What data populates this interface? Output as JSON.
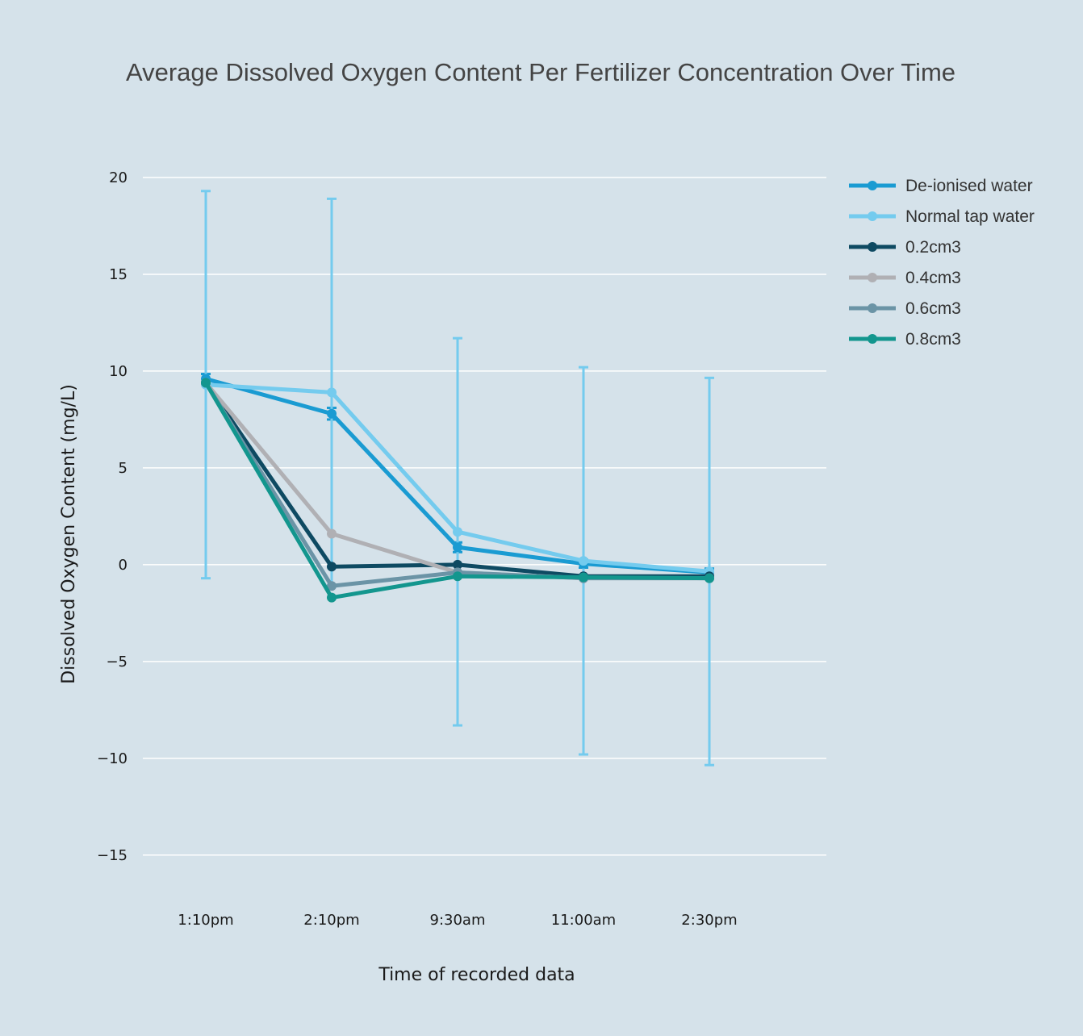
{
  "chart_data": {
    "type": "line",
    "title": "Average Dissolved Oxygen Content Per Fertilizer Concentration Over Time",
    "xlabel": "Time of recorded data",
    "ylabel": "Dissolved Oxygen Content (mg/L)",
    "categories": [
      "1:10pm",
      "2:10pm",
      "9:30am",
      "11:00am",
      "2:30pm"
    ],
    "ylim": [
      -16.8,
      22.5
    ],
    "yticks": [
      20,
      15,
      10,
      5,
      0,
      -5,
      -10,
      -15
    ],
    "ytick_labels": [
      "20",
      "15",
      "10",
      "5",
      "0",
      "−5",
      "−10",
      "−15"
    ],
    "grid": true,
    "legend_position": "top-right",
    "background_color": "#d5e2ea",
    "series": [
      {
        "name": "De-ionised water",
        "color": "#1a9bd2",
        "values": [
          9.6,
          7.8,
          0.9,
          0.05,
          -0.4
        ],
        "error": [
          0.25,
          0.3,
          0.25,
          0.2,
          0.2
        ]
      },
      {
        "name": "Normal tap water",
        "color": "#74cbee",
        "values": [
          9.3,
          8.9,
          1.7,
          0.2,
          -0.35
        ],
        "error": [
          10.0,
          10.0,
          10.0,
          10.0,
          10.0
        ]
      },
      {
        "name": "0.2cm3",
        "color": "#0e4a62",
        "values": [
          9.4,
          -0.1,
          0.0,
          -0.6,
          -0.6
        ],
        "error": null
      },
      {
        "name": "0.4cm3",
        "color": "#b0b0b4",
        "values": [
          9.4,
          1.6,
          -0.4,
          -0.7,
          -0.7
        ],
        "error": null
      },
      {
        "name": "0.6cm3",
        "color": "#6b94a6",
        "values": [
          9.4,
          -1.1,
          -0.4,
          -0.7,
          -0.7
        ],
        "error": null
      },
      {
        "name": "0.8cm3",
        "color": "#13968e",
        "values": [
          9.4,
          -1.7,
          -0.6,
          -0.65,
          -0.7
        ],
        "error": null
      }
    ]
  }
}
